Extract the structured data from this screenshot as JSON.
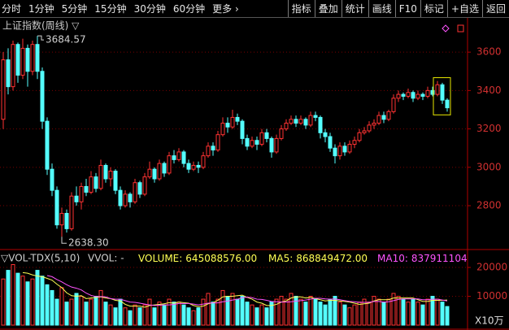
{
  "toolbar": {
    "left": [
      "分时",
      "1分钟",
      "5分钟",
      "15分钟",
      "30分钟",
      "60分钟",
      "更多 ›"
    ],
    "right": [
      "指标",
      "叠加",
      "统计",
      "画线",
      "F10",
      "标记",
      "+自选",
      "返回"
    ]
  },
  "chart_data": [
    {
      "type": "candlestick",
      "title": "上证指数(周线) ▽",
      "up_color": "#ff3232",
      "down_color": "#54ffff",
      "grid": true,
      "ylim": [
        2580,
        3770
      ],
      "yticks": [
        2800,
        3000,
        3200,
        3400,
        3600
      ],
      "high_label": "3684.57",
      "low_label": "2638.30",
      "open": [
        3250,
        3560,
        3420,
        3640,
        3480,
        3620,
        3500,
        3640,
        3500,
        3240,
        2990,
        2880,
        2700,
        2760,
        2680,
        2850,
        2820,
        2900,
        2870,
        2950,
        2890,
        3010,
        2940,
        2980,
        2880,
        2800,
        2860,
        2820,
        2920,
        2860,
        2950,
        2990,
        2940,
        3020,
        2970,
        3060,
        3040,
        3080,
        3020,
        2990,
        3010,
        3000,
        3060,
        3110,
        3090,
        3170,
        3230,
        3210,
        3260,
        3240,
        3150,
        3110,
        3140,
        3120,
        3180,
        3150,
        3080,
        3150,
        3200,
        3230,
        3250,
        3230,
        3250,
        3220,
        3270,
        3260,
        3180,
        3160,
        3100,
        3060,
        3110,
        3080,
        3120,
        3140,
        3180,
        3190,
        3220,
        3230,
        3270,
        3250,
        3290,
        3360,
        3380,
        3370,
        3390,
        3360,
        3380,
        3370,
        3400,
        3380,
        3430,
        3350
      ],
      "close": [
        3560,
        3420,
        3640,
        3480,
        3620,
        3500,
        3640,
        3500,
        3240,
        2990,
        2880,
        2700,
        2760,
        2680,
        2850,
        2820,
        2900,
        2870,
        2950,
        2890,
        3010,
        2940,
        2980,
        2880,
        2800,
        2860,
        2820,
        2920,
        2860,
        2950,
        2990,
        2940,
        3020,
        2970,
        3060,
        3040,
        3080,
        3020,
        2990,
        3010,
        3000,
        3060,
        3110,
        3090,
        3170,
        3230,
        3210,
        3260,
        3240,
        3150,
        3110,
        3140,
        3120,
        3180,
        3150,
        3080,
        3150,
        3200,
        3230,
        3250,
        3230,
        3250,
        3220,
        3270,
        3260,
        3180,
        3160,
        3100,
        3060,
        3110,
        3080,
        3120,
        3140,
        3180,
        3190,
        3220,
        3230,
        3270,
        3250,
        3290,
        3360,
        3380,
        3370,
        3390,
        3360,
        3380,
        3370,
        3400,
        3380,
        3430,
        3350,
        3310
      ],
      "high": [
        3600,
        3620,
        3660,
        3650,
        3670,
        3640,
        3660,
        3684.57,
        3520,
        3260,
        3020,
        2900,
        2790,
        2780,
        2870,
        2900,
        2920,
        2940,
        2980,
        2970,
        3040,
        3020,
        3000,
        2990,
        2900,
        2880,
        2870,
        2940,
        2930,
        2970,
        3030,
        3000,
        3040,
        3030,
        3080,
        3090,
        3100,
        3090,
        3040,
        3030,
        3030,
        3080,
        3130,
        3130,
        3190,
        3260,
        3260,
        3300,
        3280,
        3250,
        3170,
        3160,
        3160,
        3200,
        3200,
        3160,
        3170,
        3220,
        3250,
        3270,
        3270,
        3270,
        3260,
        3290,
        3290,
        3270,
        3200,
        3180,
        3120,
        3130,
        3130,
        3140,
        3160,
        3200,
        3210,
        3240,
        3250,
        3290,
        3290,
        3300,
        3380,
        3400,
        3390,
        3410,
        3400,
        3400,
        3390,
        3420,
        3420,
        3450,
        3440,
        3360
      ],
      "low": [
        3200,
        3380,
        3400,
        3440,
        3460,
        3420,
        3480,
        3460,
        3200,
        2960,
        2850,
        2680,
        2638.3,
        2660,
        2670,
        2800,
        2780,
        2850,
        2860,
        2870,
        2880,
        2920,
        2900,
        2860,
        2780,
        2790,
        2790,
        2810,
        2840,
        2850,
        2940,
        2920,
        2930,
        2950,
        2960,
        3020,
        3030,
        3000,
        2970,
        2980,
        2970,
        2990,
        3050,
        3060,
        3080,
        3160,
        3180,
        3200,
        3220,
        3120,
        3090,
        3100,
        3090,
        3110,
        3130,
        3050,
        3070,
        3140,
        3190,
        3220,
        3210,
        3220,
        3200,
        3210,
        3240,
        3150,
        3130,
        3080,
        3020,
        3040,
        3060,
        3070,
        3100,
        3130,
        3170,
        3180,
        3200,
        3220,
        3230,
        3240,
        3280,
        3340,
        3350,
        3360,
        3340,
        3350,
        3350,
        3360,
        3370,
        3370,
        3330,
        3290
      ]
    },
    {
      "type": "bar",
      "title": "▽VOL-TDX(5,10)",
      "vvol_label": "VVOL: -",
      "unit_label": "X10万",
      "ylim": [
        0,
        24800
      ],
      "yticks": [
        10000,
        20000
      ],
      "series": [
        {
          "name": "VOLUME:",
          "legend_value": "645088576.00",
          "color": "#ffff54",
          "values": [
            16000,
            19000,
            21000,
            18000,
            17000,
            15000,
            16000,
            19000,
            17000,
            14000,
            12000,
            9000,
            13000,
            8000,
            9000,
            11000,
            10000,
            8000,
            9000,
            10000,
            12000,
            8000,
            7000,
            6000,
            9000,
            6000,
            5000,
            7000,
            6000,
            7000,
            9000,
            6000,
            8000,
            7000,
            9000,
            8000,
            8000,
            7000,
            6000,
            5000,
            6000,
            9000,
            11000,
            8000,
            9000,
            12000,
            10000,
            11000,
            9000,
            10000,
            8000,
            7000,
            6000,
            7000,
            6000,
            8000,
            9000,
            10000,
            9000,
            11000,
            10000,
            9000,
            8000,
            10000,
            9000,
            8000,
            7000,
            9000,
            10000,
            8000,
            7000,
            6000,
            7000,
            8000,
            9000,
            8000,
            10000,
            9000,
            8000,
            9000,
            11000,
            10000,
            9000,
            8000,
            9000,
            8000,
            7000,
            9000,
            10000,
            9000,
            8000,
            6450.9
          ]
        },
        {
          "name": "MA5:",
          "legend_value": "868849472.00",
          "color": "#ffff54",
          "values": [
            null,
            null,
            null,
            null,
            18200,
            18000,
            17400,
            17000,
            16800,
            16200,
            15600,
            14200,
            13000,
            11200,
            10200,
            10000,
            10200,
            9200,
            9400,
            9600,
            9800,
            9400,
            9200,
            8600,
            8400,
            7200,
            6600,
            6600,
            6600,
            6200,
            6800,
            7000,
            7200,
            7400,
            7800,
            7600,
            8000,
            7800,
            7600,
            6800,
            6400,
            6600,
            7400,
            7800,
            8600,
            9800,
            10000,
            10000,
            10200,
            10400,
            9600,
            9000,
            8000,
            7600,
            6800,
            6800,
            7200,
            8000,
            8400,
            9400,
            9800,
            9800,
            9400,
            9600,
            9200,
            8800,
            8400,
            8600,
            8600,
            8400,
            8200,
            8000,
            7600,
            7200,
            7400,
            7600,
            8400,
            8800,
            8800,
            8800,
            9400,
            9400,
            9400,
            9400,
            9400,
            8800,
            8200,
            8200,
            8600,
            8600,
            8600,
            8688.5
          ]
        },
        {
          "name": "MA10:",
          "legend_value": "837911104.00",
          "color": "#ff54ff",
          "values": [
            null,
            null,
            null,
            null,
            null,
            null,
            null,
            null,
            null,
            17200,
            16800,
            15800,
            15000,
            14000,
            13200,
            12800,
            12200,
            11100,
            10300,
            9900,
            9900,
            9800,
            9200,
            9000,
            9000,
            8500,
            8000,
            7900,
            7600,
            7300,
            7000,
            6800,
            6900,
            7000,
            7000,
            7200,
            7500,
            7500,
            7500,
            7300,
            7000,
            7300,
            7600,
            7700,
            7700,
            8100,
            8300,
            8700,
            9000,
            9500,
            9700,
            9500,
            9000,
            8900,
            8600,
            8200,
            8100,
            8000,
            8000,
            8100,
            8300,
            8500,
            8700,
            9000,
            9300,
            9300,
            9100,
            9000,
            9100,
            8800,
            8500,
            8200,
            8100,
            7900,
            7900,
            7900,
            8200,
            8200,
            8000,
            8100,
            8500,
            8900,
            9100,
            9100,
            9100,
            9100,
            8800,
            8800,
            9000,
            9000,
            8700,
            8379.1
          ]
        }
      ]
    }
  ]
}
